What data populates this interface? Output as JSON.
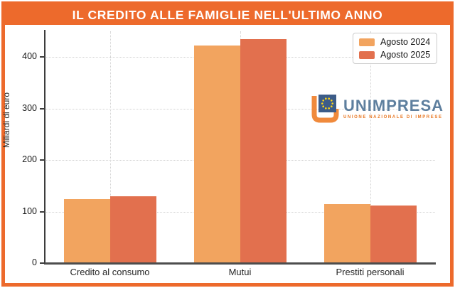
{
  "header": {
    "title": "IL CREDITO ALLE FAMIGLIE NELL'ULTIMO ANNO",
    "bg_color": "#ED6A2C",
    "text_color": "#ffffff"
  },
  "frame": {
    "border_color": "#ED6A2C",
    "background": "#ffffff"
  },
  "chart_data": {
    "type": "bar",
    "title": "IL CREDITO ALLE FAMIGLIE NELL'ULTIMO ANNO",
    "categories": [
      "Credito al consumo",
      "Mutui",
      "Prestiti personali"
    ],
    "series": [
      {
        "name": "Agosto 2024",
        "color": "#F2A45F",
        "values": [
          124,
          423,
          115
        ]
      },
      {
        "name": "Agosto 2025",
        "color": "#E2704E",
        "values": [
          130,
          435,
          112
        ]
      }
    ],
    "xlabel": "",
    "ylabel": "Miliardi di euro",
    "yticks": [
      0,
      100,
      200,
      300,
      400
    ],
    "ylim": [
      0,
      450
    ],
    "grid": "dotted, horizontal at yticks and vertical at category centers",
    "legend_position": "upper right",
    "grid_color": "#d2d2d2",
    "axis_color": "#3c3c3c"
  },
  "logo": {
    "name": "UNIMPRESA",
    "subtitle": "UNIONE NAZIONALE DI IMPRESE",
    "word_color": "#5E7F9E",
    "accent_color": "#E87722",
    "eu_blue": "#3C5C88",
    "star_color": "#FFD617"
  }
}
